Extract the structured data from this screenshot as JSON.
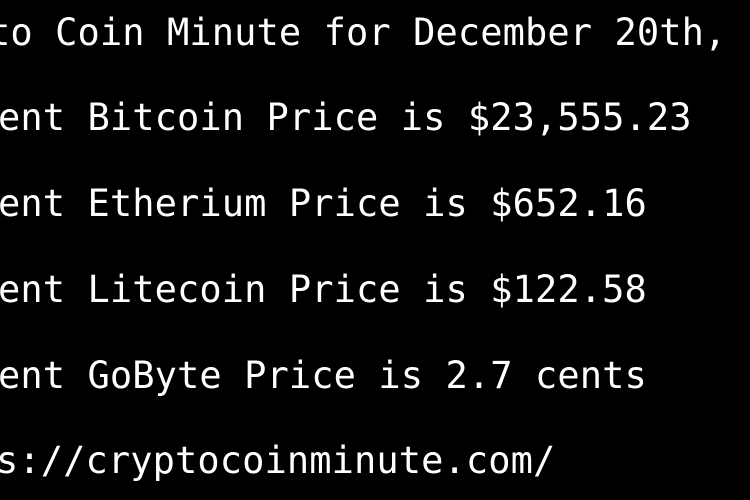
{
  "terminal": {
    "background": "#000000",
    "text_color": "#ffffff",
    "lines": [
      "to Coin Minute for December 20th,",
      "ent Bitcoin Price is $23,555.23",
      "ent Etherium Price is $652.16",
      "ent Litecoin Price is $122.58",
      "ent GoByte Price is 2.7 cents",
      "s://cryptocoinminute.com/"
    ]
  }
}
